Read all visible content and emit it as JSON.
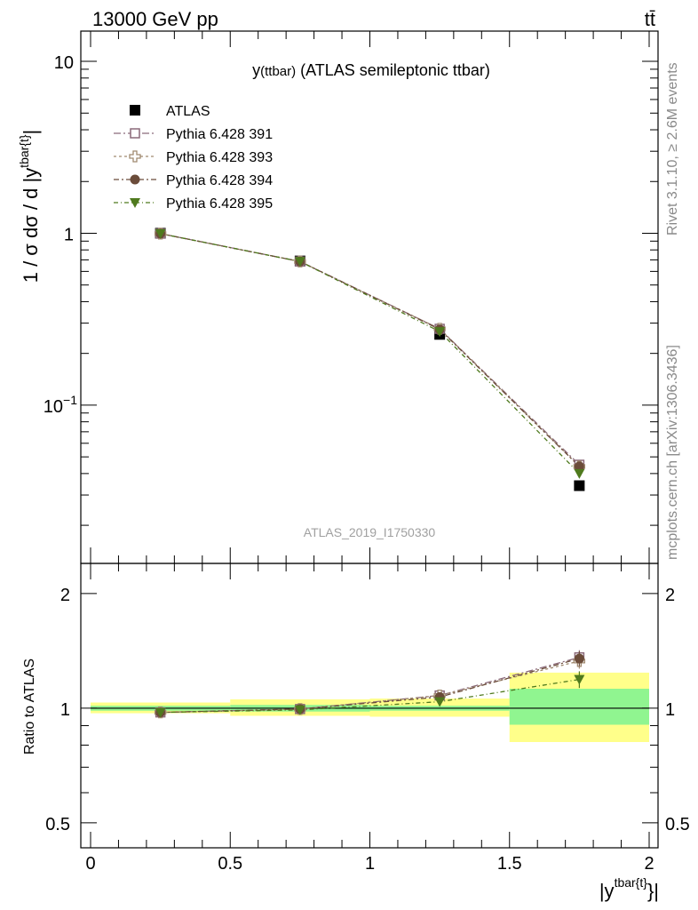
{
  "header": {
    "left_label": "13000 GeV pp",
    "right_label": "tt̄"
  },
  "side_labels": {
    "rivet": "Rivet 3.1.10, ≥ 2.6M events",
    "mcplots": "mcplots.cern.ch [arXiv:1306.3436]"
  },
  "chart_data": [
    {
      "type": "line",
      "panel": "main",
      "title": "y(ttbar) (ATLAS semileptonic ttbar)",
      "title_parts": {
        "y": "y",
        "sub": "(ttbar)",
        "rest": " (ATLAS semileptonic ttbar)"
      },
      "ylabel": "1 / σ dσ / d |y^{tbar{t}}|",
      "ylabel_parts": {
        "main": "1 / σ dσ / d |y",
        "sup": "tbar{t}",
        "close": "|"
      },
      "watermark": "ATLAS_2019_I1750330",
      "yscale": "log",
      "ylim": [
        0.012,
        15
      ],
      "xlim": [
        -0.05,
        2.05
      ],
      "yticks": [
        {
          "value": 10,
          "label": "10"
        },
        {
          "value": 1,
          "label": "1"
        },
        {
          "value": 0.1,
          "label": "10",
          "exp": "−1"
        }
      ],
      "legend_position": "top-left",
      "x": [
        0.25,
        0.75,
        1.25,
        1.75
      ],
      "data": {
        "name": "ATLAS",
        "values": [
          1.0,
          0.69,
          0.258,
          0.034
        ]
      },
      "series": [
        {
          "name": "Pythia 6.428 391",
          "color": "#8b6a7a",
          "marker": "open-square",
          "values": [
            0.995,
            0.685,
            0.278,
            0.045
          ]
        },
        {
          "name": "Pythia 6.428 393",
          "color": "#a08a70",
          "marker": "open-cross",
          "values": [
            0.995,
            0.685,
            0.278,
            0.044
          ]
        },
        {
          "name": "Pythia 6.428 394",
          "color": "#6b4c3a",
          "marker": "filled-circle",
          "values": [
            0.995,
            0.685,
            0.276,
            0.044
          ]
        },
        {
          "name": "Pythia 6.428 395",
          "color": "#4f7a1e",
          "marker": "filled-triangle-down",
          "values": [
            0.995,
            0.685,
            0.268,
            0.04
          ]
        }
      ]
    },
    {
      "type": "line",
      "panel": "ratio",
      "ylabel": "Ratio to ATLAS",
      "xlabel": "|y^{tbar{t}}|",
      "xlabel_parts": {
        "main": "|y",
        "sup": "tbar{t}",
        "close": "}|"
      },
      "yscale": "log",
      "ylim": [
        0.43,
        2.4
      ],
      "xlim": [
        -0.05,
        2.05
      ],
      "yticks": [
        {
          "value": 2,
          "label": "2"
        },
        {
          "value": 1,
          "label": "1"
        },
        {
          "value": 0.5,
          "label": "0.5"
        }
      ],
      "xticks": [
        {
          "value": 0,
          "label": "0"
        },
        {
          "value": 0.5,
          "label": "0.5"
        },
        {
          "value": 1,
          "label": "1"
        },
        {
          "value": 1.5,
          "label": "1.5"
        },
        {
          "value": 2,
          "label": "2"
        }
      ],
      "bands": [
        {
          "x0": 0.0,
          "x1": 0.5,
          "stat": [
            0.985,
            1.015
          ],
          "total": [
            0.97,
            1.035
          ]
        },
        {
          "x0": 0.5,
          "x1": 1.0,
          "stat": [
            0.98,
            1.02
          ],
          "total": [
            0.955,
            1.055
          ]
        },
        {
          "x0": 1.0,
          "x1": 1.5,
          "stat": [
            0.985,
            1.015
          ],
          "total": [
            0.95,
            1.06
          ]
        },
        {
          "x0": 1.5,
          "x1": 2.0,
          "stat": [
            0.905,
            1.125
          ],
          "total": [
            0.815,
            1.24
          ]
        }
      ],
      "x": [
        0.25,
        0.75,
        1.25,
        1.75
      ],
      "series": [
        {
          "name": "Pythia 6.428 391",
          "color": "#8b6a7a",
          "marker": "open-square",
          "values": [
            0.975,
            0.995,
            1.08,
            1.36
          ],
          "err": [
            0.01,
            0.02,
            0.02,
            0.06
          ]
        },
        {
          "name": "Pythia 6.428 393",
          "color": "#a08a70",
          "marker": "open-cross",
          "values": [
            0.975,
            0.995,
            1.08,
            1.33
          ],
          "err": [
            0.01,
            0.02,
            0.02,
            0.06
          ]
        },
        {
          "name": "Pythia 6.428 394",
          "color": "#6b4c3a",
          "marker": "filled-circle",
          "values": [
            0.975,
            0.995,
            1.07,
            1.35
          ],
          "err": [
            0.01,
            0.02,
            0.02,
            0.06
          ]
        },
        {
          "name": "Pythia 6.428 395",
          "color": "#4f7a1e",
          "marker": "filled-triangle-down",
          "values": [
            0.975,
            0.99,
            1.04,
            1.19
          ],
          "err": [
            0.01,
            0.02,
            0.02,
            0.06
          ]
        }
      ]
    }
  ]
}
